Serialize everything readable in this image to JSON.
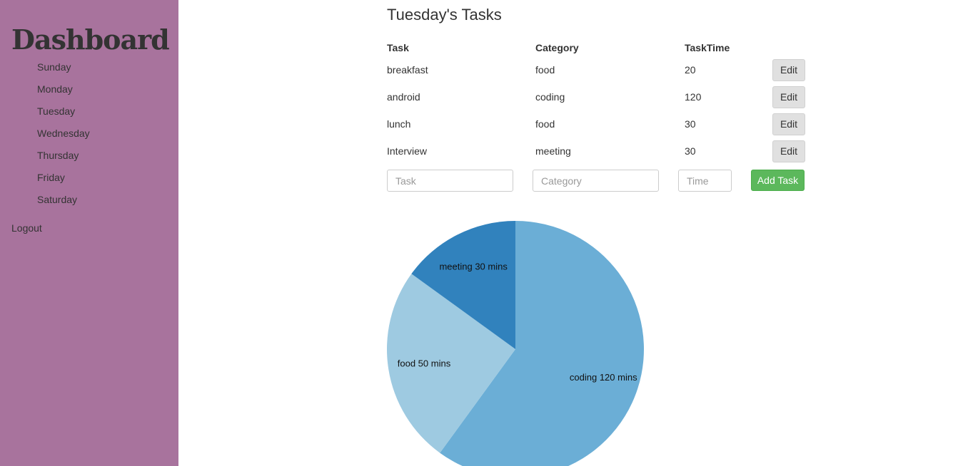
{
  "sidebar": {
    "brand": "Dashboard",
    "days": [
      "Sunday",
      "Monday",
      "Tuesday",
      "Wednesday",
      "Thursday",
      "Friday",
      "Saturday"
    ],
    "logout": "Logout",
    "bg_color": "#a8739d"
  },
  "main": {
    "title": "Tuesday's Tasks",
    "table": {
      "headers": {
        "task": "Task",
        "category": "Category",
        "time": "TaskTime"
      },
      "rows": [
        {
          "task": "breakfast",
          "category": "food",
          "time": "20",
          "action": "Edit"
        },
        {
          "task": "android",
          "category": "coding",
          "time": "120",
          "action": "Edit"
        },
        {
          "task": "lunch",
          "category": "food",
          "time": "30",
          "action": "Edit"
        },
        {
          "task": "Interview",
          "category": "meeting",
          "time": "30",
          "action": "Edit"
        }
      ]
    },
    "form": {
      "task_placeholder": "Task",
      "category_placeholder": "Category",
      "time_placeholder": "Time",
      "add_label": "Add Task",
      "add_color": "#5cb85c"
    }
  },
  "chart_data": {
    "type": "pie",
    "slices": [
      {
        "label": "coding 120 mins",
        "category": "coding",
        "value": 120,
        "color": "#6baed6"
      },
      {
        "label": "food 50 mins",
        "category": "food",
        "value": 50,
        "color": "#9ecae1"
      },
      {
        "label": "meeting 30 mins",
        "category": "meeting",
        "value": 30,
        "color": "#3182bd"
      }
    ]
  }
}
